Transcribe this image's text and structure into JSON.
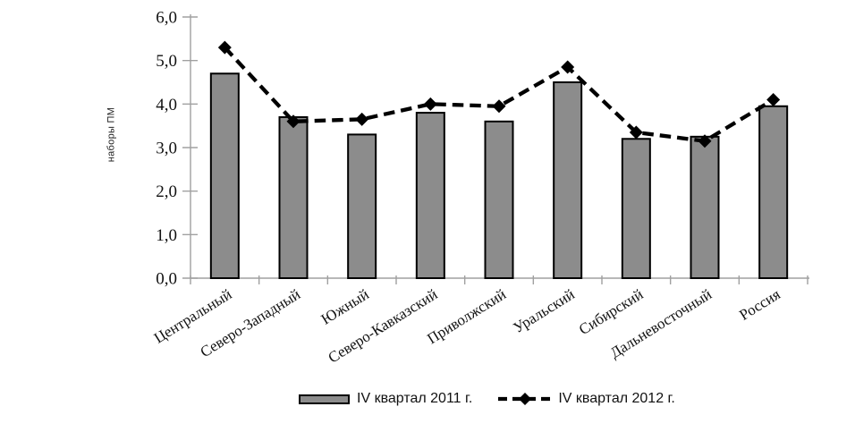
{
  "chart_data": {
    "type": "bar",
    "subtype": "bar-with-dashed-line-overlay",
    "title": "",
    "xlabel": "",
    "ylabel": "наборы ПМ",
    "categories": [
      "Центральный",
      "Северо-Западный",
      "Южный",
      "Северо-Кавказский",
      "Приволжский",
      "Уральский",
      "Сибирский",
      "Дальневосточный",
      "Россия"
    ],
    "series": [
      {
        "name": "IV квартал 2011 г.",
        "type": "bar",
        "values": [
          4.7,
          3.7,
          3.3,
          3.8,
          3.6,
          4.5,
          3.2,
          3.25,
          3.95
        ]
      },
      {
        "name": "IV квартал 2012 г.",
        "type": "line",
        "line_style": "dashed",
        "marker": "diamond",
        "values": [
          5.3,
          3.6,
          3.65,
          4.0,
          3.95,
          4.85,
          3.35,
          3.15,
          4.1
        ]
      }
    ],
    "ylim": [
      0,
      6
    ],
    "ytick_step": 1,
    "ytick_labels": [
      "0,0",
      "1,0",
      "2,0",
      "3,0",
      "4,0",
      "5,0",
      "6,0"
    ],
    "grid": "off",
    "legend_position": "bottom-center",
    "category_label_rotation_deg": -32,
    "colors": {
      "bar_fill": "#8c8c8c",
      "bar_border": "#000000",
      "line": "#000000",
      "marker": "#000000",
      "axis": "#a0a0a0",
      "tick_label": "#111111",
      "background": "#ffffff"
    }
  }
}
